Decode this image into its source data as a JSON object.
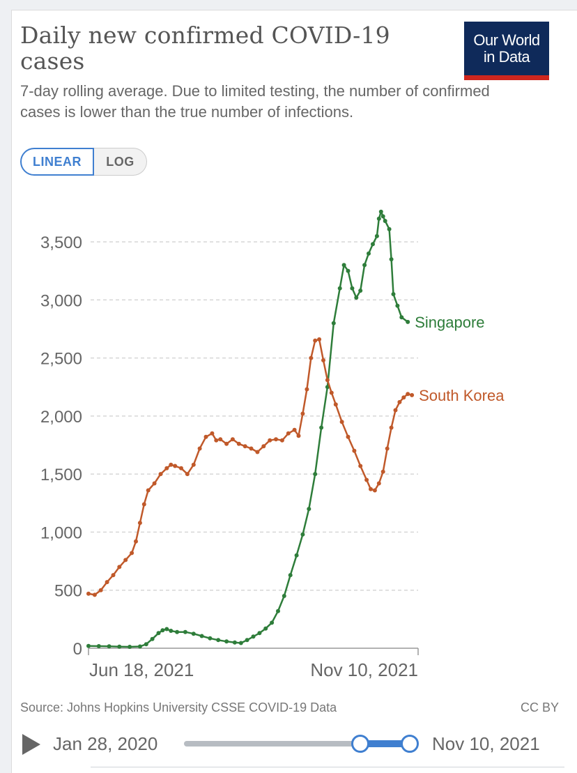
{
  "header": {
    "title": "Daily new confirmed COVID-19 cases",
    "subtitle": "7-day rolling average. Due to limited testing, the number of confirmed cases is lower than the true number of infections.",
    "logo_line1": "Our World",
    "logo_line2": "in Data"
  },
  "scale_toggle": {
    "linear": "LINEAR",
    "log": "LOG",
    "active": "LINEAR"
  },
  "colors": {
    "singapore": "#2e7d3a",
    "south_korea": "#c0592a",
    "accent": "#3f7fd0",
    "logo_bg": "#0f2a5a",
    "logo_bar": "#ce261e"
  },
  "footer": {
    "source": "Source: Johns Hopkins University CSSE COVID-19 Data",
    "license": "CC BY"
  },
  "timeline": {
    "start_date": "Jan 28, 2020",
    "end_date": "Nov 10, 2021",
    "range_start_fraction": 0.78,
    "range_end_fraction": 1.0
  },
  "chart_data": {
    "type": "line",
    "title": "Daily new confirmed COVID-19 cases",
    "ylim": [
      0,
      3800
    ],
    "yticks": [
      0,
      500,
      1000,
      1500,
      2000,
      2500,
      3000,
      3500
    ],
    "ytick_labels": [
      "0",
      "500",
      "1,000",
      "1,500",
      "2,000",
      "2,500",
      "3,000",
      "3,500"
    ],
    "x_start_day": 0,
    "x_end_day": 160,
    "xticks": [
      {
        "day": 0,
        "label": "Jun 18, 2021"
      },
      {
        "day": 160,
        "label": "Nov 10, 2021"
      }
    ],
    "grid": true,
    "series": [
      {
        "name": "Singapore",
        "key": "singapore",
        "values": [
          [
            0,
            20
          ],
          [
            5,
            18
          ],
          [
            10,
            16
          ],
          [
            15,
            13
          ],
          [
            20,
            12
          ],
          [
            25,
            15
          ],
          [
            28,
            35
          ],
          [
            31,
            80
          ],
          [
            34,
            130
          ],
          [
            36,
            155
          ],
          [
            38,
            165
          ],
          [
            40,
            150
          ],
          [
            43,
            140
          ],
          [
            47,
            140
          ],
          [
            51,
            125
          ],
          [
            55,
            105
          ],
          [
            59,
            85
          ],
          [
            63,
            70
          ],
          [
            67,
            58
          ],
          [
            71,
            50
          ],
          [
            74,
            45
          ],
          [
            77,
            70
          ],
          [
            80,
            100
          ],
          [
            83,
            130
          ],
          [
            86,
            170
          ],
          [
            89,
            220
          ],
          [
            92,
            320
          ],
          [
            95,
            450
          ],
          [
            98,
            630
          ],
          [
            101,
            800
          ],
          [
            104,
            980
          ],
          [
            107,
            1200
          ],
          [
            110,
            1500
          ],
          [
            113,
            1900
          ],
          [
            116,
            2250
          ],
          [
            119,
            2800
          ],
          [
            122,
            3100
          ],
          [
            124,
            3300
          ],
          [
            126,
            3250
          ],
          [
            128,
            3100
          ],
          [
            130,
            3020
          ],
          [
            132,
            3080
          ],
          [
            134,
            3300
          ],
          [
            136,
            3400
          ],
          [
            138,
            3480
          ],
          [
            140,
            3550
          ],
          [
            141,
            3700
          ],
          [
            142,
            3760
          ],
          [
            143,
            3720
          ],
          [
            144,
            3680
          ],
          [
            146,
            3610
          ],
          [
            147,
            3350
          ],
          [
            148,
            3050
          ],
          [
            150,
            2950
          ],
          [
            152,
            2850
          ],
          [
            155,
            2810
          ]
        ]
      },
      {
        "name": "South Korea",
        "key": "south_korea",
        "values": [
          [
            0,
            470
          ],
          [
            3,
            460
          ],
          [
            6,
            500
          ],
          [
            9,
            570
          ],
          [
            12,
            630
          ],
          [
            15,
            700
          ],
          [
            18,
            760
          ],
          [
            21,
            820
          ],
          [
            23,
            920
          ],
          [
            25,
            1080
          ],
          [
            27,
            1240
          ],
          [
            29,
            1360
          ],
          [
            32,
            1420
          ],
          [
            35,
            1500
          ],
          [
            38,
            1550
          ],
          [
            40,
            1580
          ],
          [
            42,
            1570
          ],
          [
            45,
            1550
          ],
          [
            48,
            1500
          ],
          [
            51,
            1580
          ],
          [
            54,
            1720
          ],
          [
            57,
            1820
          ],
          [
            60,
            1850
          ],
          [
            62,
            1790
          ],
          [
            64,
            1800
          ],
          [
            67,
            1760
          ],
          [
            70,
            1800
          ],
          [
            73,
            1760
          ],
          [
            76,
            1740
          ],
          [
            79,
            1720
          ],
          [
            82,
            1690
          ],
          [
            85,
            1740
          ],
          [
            88,
            1790
          ],
          [
            91,
            1800
          ],
          [
            94,
            1790
          ],
          [
            97,
            1850
          ],
          [
            100,
            1880
          ],
          [
            102,
            1830
          ],
          [
            104,
            2020
          ],
          [
            106,
            2230
          ],
          [
            108,
            2500
          ],
          [
            110,
            2650
          ],
          [
            112,
            2660
          ],
          [
            114,
            2480
          ],
          [
            116,
            2310
          ],
          [
            118,
            2200
          ],
          [
            120,
            2100
          ],
          [
            123,
            1950
          ],
          [
            126,
            1820
          ],
          [
            129,
            1700
          ],
          [
            132,
            1570
          ],
          [
            135,
            1450
          ],
          [
            137,
            1370
          ],
          [
            139,
            1360
          ],
          [
            141,
            1420
          ],
          [
            143,
            1520
          ],
          [
            145,
            1720
          ],
          [
            147,
            1900
          ],
          [
            149,
            2050
          ],
          [
            151,
            2120
          ],
          [
            153,
            2160
          ],
          [
            155,
            2190
          ],
          [
            157,
            2180
          ]
        ]
      }
    ]
  }
}
